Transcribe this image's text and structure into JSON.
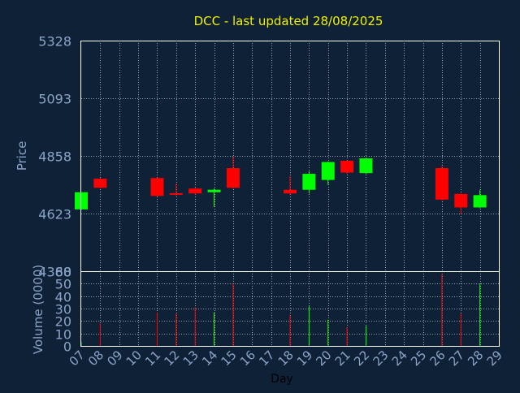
{
  "chart_data": {
    "type": "candlestick",
    "title": "DCC - last updated 28/08/2025",
    "xlabel": "Day",
    "price_ylabel": "Price",
    "volume_ylabel": "Volume (0000)",
    "x_tick_labels": [
      "07",
      "08",
      "09",
      "10",
      "11",
      "12",
      "13",
      "14",
      "15",
      "16",
      "17",
      "18",
      "19",
      "20",
      "21",
      "22",
      "23",
      "24",
      "25",
      "26",
      "27",
      "28",
      "29"
    ],
    "price_ylim": [
      4388,
      5328
    ],
    "price_ticks": [
      "5328",
      "5093",
      "4858",
      "4623",
      "4388"
    ],
    "volume_ylim": [
      0,
      60
    ],
    "volume_ticks": [
      "60",
      "50",
      "40",
      "30",
      "20",
      "10",
      "0"
    ],
    "grid": true,
    "colors": {
      "background": "#0e2136",
      "axis_text": "#8aa4c8",
      "title": "#f0f000",
      "grid": "#9aa6b6",
      "up": "#00ff00",
      "down": "#ff0000",
      "axes": "#ffffff"
    },
    "candles": [
      {
        "day": "07",
        "open": 4640,
        "close": 4710,
        "high": 4710,
        "low": 4638,
        "volume": 3
      },
      {
        "day": "08",
        "open": 4765,
        "close": 4728,
        "high": 4768,
        "low": 4725,
        "volume": 18
      },
      {
        "day": "11",
        "open": 4768,
        "close": 4695,
        "high": 4768,
        "low": 4693,
        "volume": 27
      },
      {
        "day": "12",
        "open": 4706,
        "close": 4700,
        "high": 4745,
        "low": 4695,
        "volume": 26
      },
      {
        "day": "13",
        "open": 4725,
        "close": 4705,
        "high": 4730,
        "low": 4700,
        "volume": 31
      },
      {
        "day": "14",
        "open": 4710,
        "close": 4720,
        "high": 4725,
        "low": 4650,
        "volume": 27
      },
      {
        "day": "15",
        "open": 4808,
        "close": 4728,
        "high": 4855,
        "low": 4725,
        "volume": 50
      },
      {
        "day": "18",
        "open": 4720,
        "close": 4705,
        "high": 4775,
        "low": 4700,
        "volume": 25
      },
      {
        "day": "19",
        "open": 4720,
        "close": 4785,
        "high": 4795,
        "low": 4705,
        "volume": 32
      },
      {
        "day": "20",
        "open": 4760,
        "close": 4833,
        "high": 4835,
        "low": 4740,
        "volume": 21
      },
      {
        "day": "21",
        "open": 4838,
        "close": 4790,
        "high": 4840,
        "low": 4785,
        "volume": 15
      },
      {
        "day": "22",
        "open": 4788,
        "close": 4848,
        "high": 4850,
        "low": 4785,
        "volume": 16
      },
      {
        "day": "26",
        "open": 4808,
        "close": 4680,
        "high": 4815,
        "low": 4675,
        "volume": 58
      },
      {
        "day": "27",
        "open": 4703,
        "close": 4648,
        "high": 4705,
        "low": 4620,
        "volume": 26
      },
      {
        "day": "28",
        "open": 4648,
        "close": 4698,
        "high": 4720,
        "low": 4645,
        "volume": 50
      }
    ]
  }
}
